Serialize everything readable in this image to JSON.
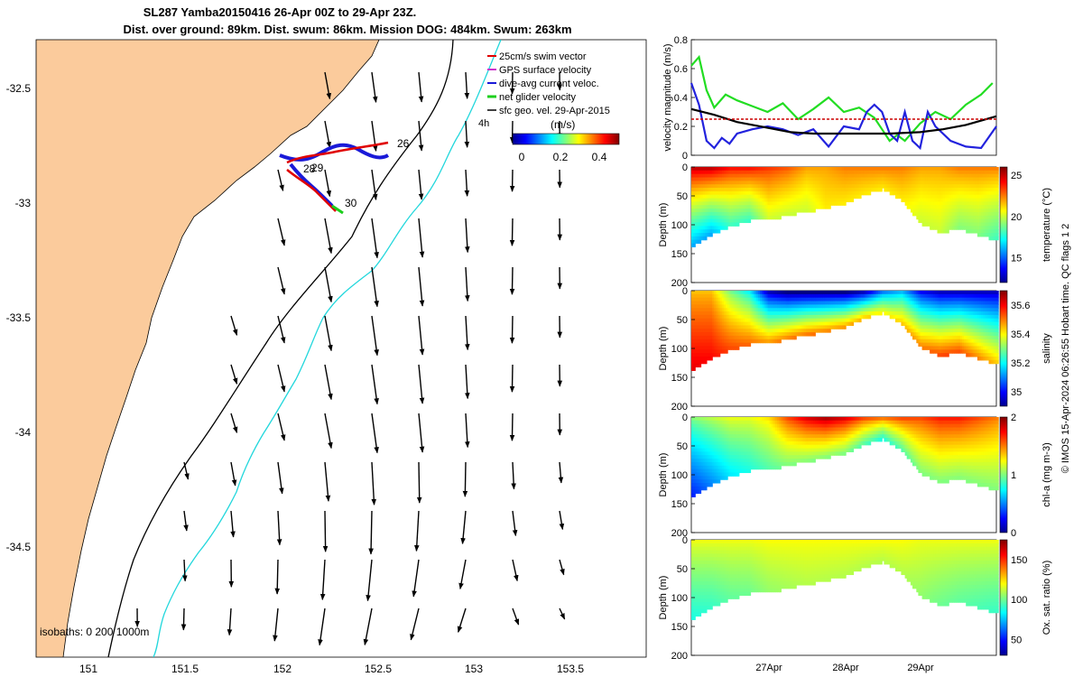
{
  "title": {
    "line1": "SL287 Yamba20150416 26-Apr 00Z to 29-Apr 23Z.",
    "line2": "Dist. over ground: 89km. Dist. swum: 86km. Mission DOG: 484km. Swum: 263km"
  },
  "colors": {
    "land": "#fbcb9c",
    "isobath_200": "#000000",
    "isobath_1000": "#22d7dc",
    "track_net": "#1ccf1c",
    "track_swim": "#e00000",
    "track_current": "#1a1ad8"
  },
  "map": {
    "x_ticks": [
      "151",
      "151.5",
      "152",
      "152.5",
      "153",
      "153.5"
    ],
    "y_ticks": [
      "-32.5",
      "-33",
      "-33.5",
      "-34",
      "-34.5"
    ],
    "isobath_label": "isobaths: 0   200   1000m",
    "day_labels": [
      "26",
      "28",
      "29",
      "30"
    ],
    "timestep_label": "4h",
    "speed_unit_label": "(m/s)",
    "colorbar_ticks": [
      "0",
      "0.2",
      "0.4"
    ],
    "legend": [
      {
        "label": "25cm/s swim vector",
        "color": "#e00000"
      },
      {
        "label": "GPS surface velocity",
        "color": "#cc33cc"
      },
      {
        "label": "dive-avg current veloc.",
        "color": "#1a1ad8"
      },
      {
        "label": "net glider velocity",
        "color": "#1ccf1c"
      },
      {
        "label": "sfc geo. vel. 29-Apr-2015",
        "color": "#000000"
      }
    ]
  },
  "chart_data": [
    {
      "type": "line",
      "panel": "velocity",
      "ylabel": "velocity magnitude (m/s)",
      "ylim": [
        0,
        0.8
      ],
      "y_ticks": [
        "0",
        "0.2",
        "0.4",
        "0.6",
        "0.8"
      ],
      "xlim_days": [
        26.0,
        30.0
      ],
      "series": [
        {
          "color": "#22dd22",
          "x": [
            26.0,
            26.1,
            26.2,
            26.3,
            26.45,
            26.6,
            26.8,
            27.0,
            27.2,
            27.4,
            27.6,
            27.8,
            28.0,
            28.2,
            28.4,
            28.5,
            28.6,
            28.7,
            28.8,
            29.0,
            29.2,
            29.4,
            29.6,
            29.8,
            29.95
          ],
          "values": [
            0.62,
            0.68,
            0.45,
            0.33,
            0.42,
            0.38,
            0.34,
            0.3,
            0.36,
            0.25,
            0.32,
            0.4,
            0.3,
            0.33,
            0.26,
            0.18,
            0.1,
            0.14,
            0.1,
            0.22,
            0.3,
            0.25,
            0.35,
            0.42,
            0.5
          ]
        },
        {
          "color": "#2222dd",
          "x": [
            26.0,
            26.1,
            26.2,
            26.3,
            26.4,
            26.5,
            26.6,
            26.8,
            27.0,
            27.2,
            27.4,
            27.6,
            27.8,
            28.0,
            28.2,
            28.3,
            28.4,
            28.5,
            28.6,
            28.7,
            28.8,
            28.9,
            29.0,
            29.1,
            29.2,
            29.4,
            29.6,
            29.8,
            30.0
          ],
          "values": [
            0.5,
            0.35,
            0.1,
            0.05,
            0.12,
            0.08,
            0.15,
            0.18,
            0.2,
            0.18,
            0.14,
            0.18,
            0.06,
            0.2,
            0.18,
            0.3,
            0.35,
            0.3,
            0.15,
            0.1,
            0.3,
            0.1,
            0.05,
            0.3,
            0.2,
            0.1,
            0.06,
            0.05,
            0.2
          ]
        },
        {
          "color": "#000000",
          "x": [
            26.0,
            26.3,
            26.6,
            27.0,
            27.3,
            27.6,
            28.0,
            28.3,
            28.6,
            29.0,
            29.3,
            29.6,
            30.0
          ],
          "values": [
            0.32,
            0.28,
            0.23,
            0.19,
            0.16,
            0.15,
            0.15,
            0.15,
            0.15,
            0.16,
            0.18,
            0.21,
            0.27
          ]
        },
        {
          "color": "#cc0000",
          "x": [
            26.0,
            30.0
          ],
          "values": [
            0.25,
            0.25
          ]
        }
      ]
    },
    {
      "type": "heatmap",
      "panel": "temperature",
      "ylabel": "Depth (m)",
      "colorbar_label": "temperature (°C)",
      "clim": [
        12,
        26
      ],
      "colorbar_ticks": [
        "15",
        "20",
        "25"
      ],
      "depth_ticks": [
        "0",
        "50",
        "100",
        "150",
        "200"
      ],
      "ylim": [
        0,
        200
      ],
      "x_days": [
        26.0,
        26.25,
        26.5,
        26.75,
        27.0,
        27.25,
        27.5,
        27.75,
        28.0,
        28.25,
        28.5,
        28.75,
        29.0,
        29.25,
        29.5,
        29.75,
        30.0
      ],
      "max_depth": [
        135,
        115,
        100,
        90,
        90,
        80,
        75,
        68,
        60,
        45,
        35,
        55,
        95,
        110,
        105,
        115,
        125
      ],
      "surface_values": [
        25,
        25,
        24,
        24,
        23.5,
        23,
        22,
        22,
        22.5,
        22.5,
        22.5,
        22.5,
        22,
        22,
        22.5,
        22.5,
        22.5
      ],
      "bottom_values": [
        16,
        16,
        18,
        18,
        20,
        20,
        20,
        21,
        21,
        21,
        21,
        21,
        20,
        20,
        19,
        19,
        18
      ]
    },
    {
      "type": "heatmap",
      "panel": "salinity",
      "ylabel": "Depth (m)",
      "colorbar_label": "salinity",
      "clim": [
        34.9,
        35.7
      ],
      "colorbar_ticks": [
        "35",
        "35.2",
        "35.4",
        "35.6"
      ],
      "depth_ticks": [
        "0",
        "50",
        "100",
        "150",
        "200"
      ],
      "ylim": [
        0,
        200
      ],
      "x_days": [
        26.0,
        26.25,
        26.5,
        26.75,
        27.0,
        27.25,
        27.5,
        27.75,
        28.0,
        28.25,
        28.5,
        28.75,
        29.0,
        29.25,
        29.5,
        29.75,
        30.0
      ],
      "max_depth": [
        135,
        115,
        100,
        90,
        90,
        80,
        75,
        68,
        60,
        45,
        35,
        55,
        95,
        110,
        105,
        115,
        125
      ],
      "surface_values": [
        35.45,
        35.45,
        35.3,
        35.2,
        34.95,
        34.9,
        34.9,
        34.9,
        34.9,
        34.95,
        35.1,
        35.15,
        35.0,
        34.95,
        34.95,
        34.95,
        34.95
      ],
      "bottom_values": [
        35.62,
        35.6,
        35.55,
        35.52,
        35.5,
        35.5,
        35.52,
        35.5,
        35.48,
        35.45,
        35.4,
        35.45,
        35.5,
        35.55,
        35.55,
        35.5,
        35.45
      ]
    },
    {
      "type": "heatmap",
      "panel": "chl-a",
      "ylabel": "Depth (m)",
      "colorbar_label": "chl-a (mg m-3)",
      "clim": [
        0,
        2
      ],
      "colorbar_ticks": [
        "0",
        "1",
        "2"
      ],
      "depth_ticks": [
        "0",
        "50",
        "100",
        "150",
        "200"
      ],
      "ylim": [
        0,
        200
      ],
      "x_days": [
        26.0,
        26.25,
        26.5,
        26.75,
        27.0,
        27.25,
        27.5,
        27.75,
        28.0,
        28.25,
        28.5,
        28.75,
        29.0,
        29.25,
        29.5,
        29.75,
        30.0
      ],
      "max_depth": [
        135,
        115,
        100,
        90,
        90,
        80,
        75,
        68,
        60,
        45,
        35,
        55,
        95,
        110,
        105,
        115,
        125
      ],
      "surface_values": [
        1.0,
        1.1,
        1.2,
        1.2,
        1.3,
        1.6,
        1.8,
        1.9,
        1.8,
        1.6,
        1.5,
        1.6,
        1.6,
        1.7,
        1.7,
        1.6,
        1.5
      ],
      "bottom_values": [
        0.3,
        0.5,
        0.7,
        0.8,
        0.9,
        1.0,
        1.0,
        1.0,
        1.0,
        0.9,
        0.8,
        0.9,
        1.0,
        1.0,
        1.0,
        1.0,
        1.0
      ]
    },
    {
      "type": "heatmap",
      "panel": "oxygen",
      "ylabel": "Depth (m)",
      "colorbar_label": "Ox. sat. ratio (%)",
      "clim": [
        30,
        175
      ],
      "colorbar_ticks": [
        "50",
        "100",
        "150"
      ],
      "depth_ticks": [
        "0",
        "50",
        "100",
        "150",
        "200"
      ],
      "ylim": [
        0,
        200
      ],
      "x_days": [
        26.0,
        26.25,
        26.5,
        26.75,
        27.0,
        27.25,
        27.5,
        27.75,
        28.0,
        28.25,
        28.5,
        28.75,
        29.0,
        29.25,
        29.5,
        29.75,
        30.0
      ],
      "max_depth": [
        135,
        115,
        100,
        90,
        90,
        80,
        75,
        68,
        60,
        45,
        35,
        55,
        95,
        110,
        105,
        115,
        125
      ],
      "surface_values": [
        118,
        118,
        118,
        118,
        120,
        120,
        120,
        120,
        120,
        120,
        120,
        120,
        118,
        118,
        118,
        118,
        118
      ],
      "bottom_values": [
        88,
        92,
        98,
        100,
        105,
        108,
        110,
        110,
        110,
        110,
        110,
        110,
        105,
        100,
        98,
        95,
        92
      ]
    }
  ],
  "time_axis": {
    "tick_labels": [
      "27Apr",
      "28Apr",
      "29Apr"
    ]
  },
  "side_label": "© IMOS 15-Apr-2024 06:26:55 Hobart time. QC flags 1  2"
}
